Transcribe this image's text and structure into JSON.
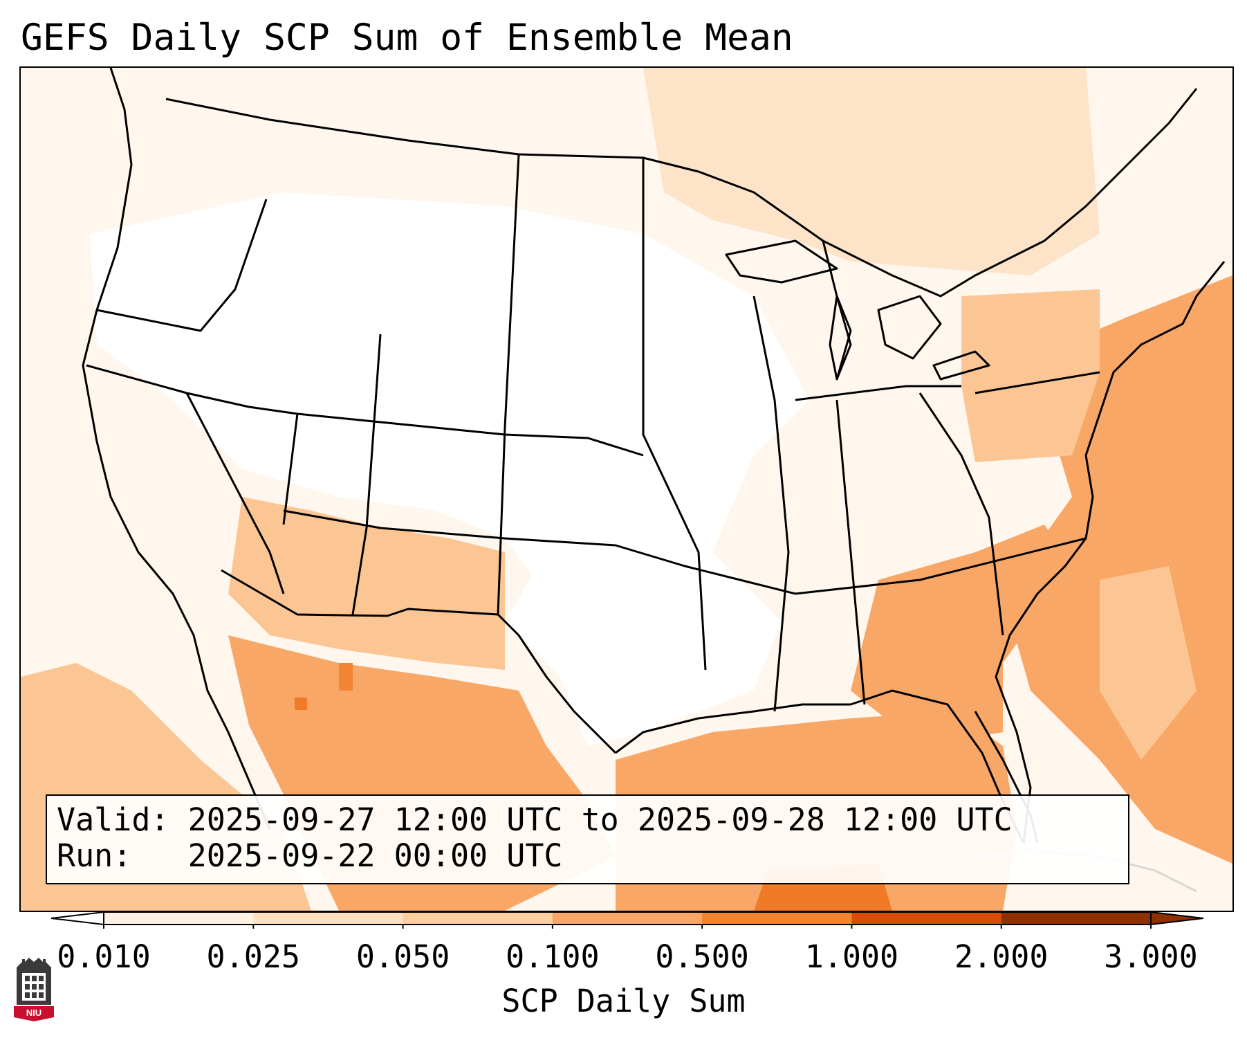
{
  "title": "GEFS Daily SCP Sum of Ensemble Mean",
  "info": {
    "valid_label": "Valid:",
    "valid_value": "2025-09-27 12:00 UTC to 2025-09-28 12:00 UTC",
    "run_label": "Run:",
    "run_value": "2025-09-22 00:00 UTC"
  },
  "colorbar": {
    "label": "SCP Daily Sum",
    "ticks": [
      "0.010",
      "0.025",
      "0.050",
      "0.100",
      "0.500",
      "1.000",
      "2.000",
      "3.000"
    ],
    "colors": [
      "#ffffff",
      "#fff1e3",
      "#fee0c2",
      "#fdcea0",
      "#f9a766",
      "#f28432",
      "#d94c05",
      "#8f3001"
    ],
    "extend": "both"
  },
  "map": {
    "projection": "Lambert conformal, CONUS",
    "overlay": "state and country boundaries",
    "regions_shading_level": {
      "pacific-ocean-southwest": "0.100",
      "gulf-of-mexico": "0.500",
      "atlantic-east-coast": "0.500",
      "southeast-us": "0.500",
      "mexico-northwest": "0.500",
      "four-corners": "0.100",
      "great-lakes-canada": "0.100",
      "northern-plains": "0.010",
      "central-plains": "0.010"
    }
  },
  "logo": {
    "text": "NIU"
  }
}
